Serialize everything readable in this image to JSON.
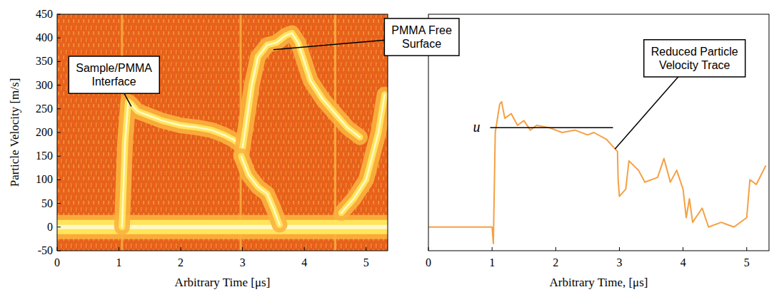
{
  "chart_data": [
    {
      "type": "spectrogram",
      "x_label": "Arbitrary Time [μs]",
      "y_label": "Particle Velocity [m/s]",
      "xlim": [
        0,
        5.35
      ],
      "ylim": [
        -50,
        450
      ],
      "xticks": [
        0,
        1,
        2,
        3,
        4,
        5
      ],
      "yticks": [
        -50,
        0,
        50,
        100,
        150,
        200,
        250,
        300,
        350,
        400,
        450
      ],
      "color": "#e8621c",
      "series": [
        {
          "type": "band",
          "x": [
            0,
            5.35
          ],
          "values": [
            0,
            0
          ]
        },
        {
          "x": [
            1.05,
            1.1,
            1.15,
            1.2,
            1.3,
            1.5,
            1.7,
            2.0,
            2.3,
            2.5,
            2.7,
            2.85,
            2.95
          ],
          "values": [
            0,
            180,
            265,
            260,
            245,
            235,
            225,
            215,
            210,
            205,
            195,
            185,
            175
          ]
        },
        {
          "x": [
            2.98,
            3.05,
            3.15,
            3.25,
            3.4,
            3.55,
            3.7,
            3.8,
            3.9,
            4.0,
            4.1,
            4.3,
            4.5,
            4.7,
            4.9
          ],
          "values": [
            150,
            210,
            300,
            360,
            385,
            390,
            405,
            410,
            390,
            350,
            310,
            270,
            240,
            210,
            190
          ]
        },
        {
          "x": [
            2.98,
            3.1,
            3.25,
            3.4,
            3.5,
            3.6
          ],
          "values": [
            150,
            110,
            85,
            70,
            40,
            5
          ]
        },
        {
          "x": [
            4.6,
            4.8,
            5.0,
            5.2,
            5.3
          ],
          "values": [
            30,
            60,
            100,
            200,
            280
          ]
        }
      ],
      "vertical_streaks": [
        1.05,
        2.97,
        4.5
      ],
      "annotations": [
        {
          "text": "Sample/PMMA Interface",
          "x": 1.2,
          "y": 255,
          "text_x": 0.92,
          "text_y": 322
        },
        {
          "text": "PMMA Free Surface",
          "x": 3.5,
          "y": 375,
          "text_x": 5.9,
          "text_y": 402
        }
      ]
    },
    {
      "type": "line",
      "x_label": "Arbitrary Time, [μs]",
      "xlim": [
        0,
        5.35
      ],
      "ylim": [
        -50,
        450
      ],
      "xticks": [
        0,
        1,
        2,
        3,
        4,
        5
      ],
      "tick_labels": "x",
      "series": [
        {
          "color": "#f5a043",
          "x": [
            0,
            1.0,
            1.02,
            1.05,
            1.12,
            1.15,
            1.2,
            1.3,
            1.4,
            1.5,
            1.6,
            1.7,
            1.9,
            2.1,
            2.3,
            2.5,
            2.6,
            2.8,
            2.9,
            2.97,
            2.98,
            3.0,
            3.1,
            3.15,
            3.3,
            3.4,
            3.6,
            3.7,
            3.8,
            3.9,
            4.0,
            4.05,
            4.1,
            4.15,
            4.3,
            4.4,
            4.6,
            4.8,
            5.0,
            5.05,
            5.15,
            5.3
          ],
          "values": [
            0,
            0,
            -35,
            200,
            260,
            265,
            230,
            240,
            215,
            225,
            205,
            215,
            210,
            200,
            205,
            195,
            200,
            185,
            170,
            160,
            100,
            65,
            80,
            140,
            120,
            95,
            105,
            145,
            95,
            120,
            80,
            20,
            60,
            10,
            40,
            0,
            10,
            0,
            20,
            100,
            90,
            130
          ]
        }
      ],
      "reference": {
        "label": "u",
        "value": 210,
        "x": [
          0.97,
          2.9
        ]
      },
      "annotations": [
        {
          "text": "Reduced Particle Velocity Trace",
          "x": 2.93,
          "y": 165,
          "text_x": 4.18,
          "text_y": 357
        }
      ]
    }
  ]
}
